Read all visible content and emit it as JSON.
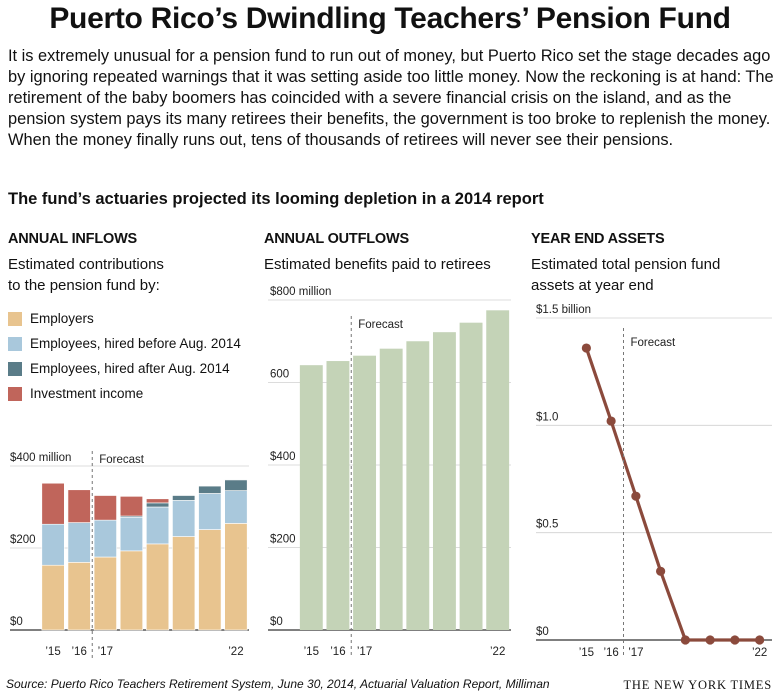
{
  "title": "Puerto Rico’s Dwindling Teachers’ Pension Fund",
  "intro": "It is extremely unusual for a pension fund to run out of money, but Puerto Rico set the stage decades ago by ignoring repeated warnings that it was setting aside too little money. Now the reckoning is at hand: The retirement of the baby boomers has coincided  with a severe financial crisis on the island, and as the pension system pays its many retirees their benefits, the government is too  broke to replenish the money. When the money finally runs out, tens of thousands of retirees will never see their pensions.",
  "subtitle": "The fund’s actuaries projected its looming depletion in a 2014 report",
  "source": "Source: Puerto Rico Teachers Retirement System, June 30, 2014, Actuarial Valuation Report, Milliman",
  "credit": "THE NEW YORK TIMES",
  "panels": {
    "inflows": {
      "heading": "ANNUAL INFLOWS",
      "sub1": "Estimated contributions",
      "sub2": "to the pension fund by:"
    },
    "outflows": {
      "heading": "ANNUAL OUTFLOWS",
      "sub1": "Estimated benefits paid to retirees"
    },
    "assets": {
      "heading": "YEAR END ASSETS",
      "sub1": "Estimated total pension fund",
      "sub2": "assets at year end"
    }
  },
  "legend": [
    {
      "label": "Employers",
      "color": "#e8c48f"
    },
    {
      "label": "Employees, hired before Aug. 2014",
      "color": "#a9c8dc"
    },
    {
      "label": "Employees, hired after Aug. 2014",
      "color": "#5a7c88"
    },
    {
      "label": "Investment income",
      "color": "#c0655b"
    }
  ],
  "chart_data": [
    {
      "type": "bar",
      "stacked": true,
      "name": "inflows",
      "categories": [
        "2015",
        "2016",
        "2017",
        "2018",
        "2019",
        "2020",
        "2021",
        "2022"
      ],
      "x_tick_labels": [
        "’15",
        "’16",
        "’17",
        "",
        "",
        "",
        "",
        "’22"
      ],
      "series": [
        {
          "name": "Employers",
          "color": "#e8c48f",
          "values": [
            158,
            165,
            178,
            193,
            210,
            228,
            245,
            260
          ]
        },
        {
          "name": "Employees, hired before Aug. 2014",
          "color": "#a9c8dc",
          "values": [
            100,
            97,
            90,
            82,
            90,
            88,
            88,
            80
          ]
        },
        {
          "name": "Employees, hired after Aug. 2014",
          "color": "#5a7c88",
          "values": [
            0,
            0,
            0,
            3,
            10,
            12,
            18,
            26
          ]
        },
        {
          "name": "Investment income",
          "color": "#c0655b",
          "values": [
            100,
            80,
            60,
            48,
            10,
            0,
            0,
            0
          ]
        }
      ],
      "y_ticks": [
        {
          "value": 0,
          "label": "$0"
        },
        {
          "value": 200,
          "label": "$200"
        },
        {
          "value": 400,
          "label": "$400 million"
        }
      ],
      "ylim": [
        0,
        400
      ],
      "forecast_label": "Forecast",
      "forecast_after": "2016"
    },
    {
      "type": "bar",
      "name": "outflows",
      "categories": [
        "2015",
        "2016",
        "2017",
        "2018",
        "2019",
        "2020",
        "2021",
        "2022"
      ],
      "x_tick_labels": [
        "’15",
        "’16",
        "’17",
        "",
        "",
        "",
        "",
        "’22"
      ],
      "values": [
        642,
        652,
        665,
        682,
        700,
        722,
        745,
        775
      ],
      "color": "#c4d3b7",
      "y_ticks": [
        {
          "value": 0,
          "label": "$0"
        },
        {
          "value": 200,
          "label": "$200"
        },
        {
          "value": 400,
          "label": "$400"
        },
        {
          "value": 600,
          "label": "600"
        },
        {
          "value": 800,
          "label": "$800 million"
        }
      ],
      "ylim": [
        0,
        800
      ],
      "forecast_label": "Forecast",
      "forecast_after": "2016"
    },
    {
      "type": "line",
      "name": "assets",
      "x": [
        "2015",
        "2016",
        "2017",
        "2018",
        "2019",
        "2020",
        "2021",
        "2022"
      ],
      "x_tick_labels": [
        "’15",
        "’16",
        "’17",
        "",
        "",
        "",
        "",
        "’22"
      ],
      "values": [
        1.36,
        1.02,
        0.67,
        0.32,
        0,
        0,
        0,
        0
      ],
      "color": "#8b4a3c",
      "y_ticks": [
        {
          "value": 0,
          "label": "$0"
        },
        {
          "value": 0.5,
          "label": "$0.5"
        },
        {
          "value": 1.0,
          "label": "$1.0"
        },
        {
          "value": 1.5,
          "label": "$1.5 billion"
        }
      ],
      "ylim": [
        0,
        1.5
      ],
      "forecast_label": "Forecast",
      "forecast_after": "2016"
    }
  ]
}
